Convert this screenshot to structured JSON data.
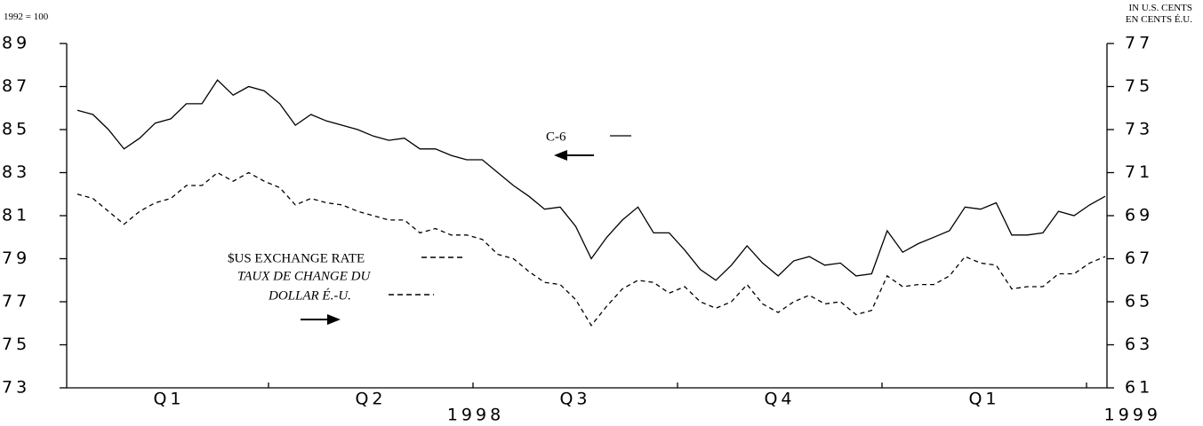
{
  "chart_data": {
    "type": "line",
    "y_unit": "1992 = 100",
    "y2_unit": [
      "IN U.S. CENTS",
      "EN CENTS É.U."
    ],
    "quarters": [
      "Q1",
      "Q2",
      "Q3",
      "Q4",
      "Q1"
    ],
    "years": [
      "1998",
      "1999"
    ],
    "ylim": [
      73,
      89
    ],
    "yticks": [
      73,
      75,
      77,
      79,
      81,
      83,
      85,
      87,
      89
    ],
    "y2lim": [
      61,
      77
    ],
    "y2ticks": [
      61,
      63,
      65,
      67,
      69,
      71,
      73,
      75,
      77
    ],
    "series": [
      {
        "name": "C-6",
        "color": "#000000",
        "dashed": false,
        "axis": "y",
        "values": [
          85.9,
          85.7,
          85.0,
          84.1,
          84.6,
          85.3,
          85.5,
          86.2,
          86.2,
          87.3,
          86.6,
          87.0,
          86.8,
          86.2,
          85.2,
          85.7,
          85.4,
          85.2,
          85.0,
          84.7,
          84.5,
          84.6,
          84.1,
          84.1,
          83.8,
          83.6,
          83.6,
          83.0,
          82.4,
          81.9,
          81.3,
          81.4,
          80.5,
          79.0,
          80.0,
          80.8,
          81.4,
          80.2,
          80.2,
          79.4,
          78.5,
          78.0,
          78.7,
          79.6,
          78.8,
          78.2,
          78.9,
          79.1,
          78.7,
          78.8,
          78.2,
          78.3,
          80.3,
          79.3,
          79.7,
          80.0,
          80.3,
          81.4,
          81.3,
          81.6,
          80.1,
          80.1,
          80.2,
          81.2,
          81.0,
          81.5,
          81.9
        ]
      },
      {
        "name": "$US EXCHANGE RATE",
        "name_fr": [
          "TAUX DE CHANGE DU",
          "DOLLAR É.-U."
        ],
        "color": "#000000",
        "dashed": true,
        "axis": "y2",
        "values": [
          70.0,
          69.8,
          69.2,
          68.6,
          69.2,
          69.6,
          69.8,
          70.4,
          70.4,
          71.0,
          70.6,
          71.0,
          70.6,
          70.3,
          69.5,
          69.8,
          69.6,
          69.5,
          69.2,
          69.0,
          68.8,
          68.8,
          68.2,
          68.4,
          68.1,
          68.1,
          67.9,
          67.2,
          67.0,
          66.4,
          65.9,
          65.8,
          65.1,
          63.9,
          64.8,
          65.6,
          66.0,
          65.9,
          65.4,
          65.7,
          65.0,
          64.7,
          65.0,
          65.8,
          64.9,
          64.5,
          65.0,
          65.3,
          64.9,
          65.0,
          64.4,
          64.6,
          66.2,
          65.7,
          65.8,
          65.8,
          66.2,
          67.1,
          66.8,
          66.7,
          65.6,
          65.7,
          65.7,
          66.3,
          66.3,
          66.8,
          67.1
        ]
      }
    ]
  }
}
